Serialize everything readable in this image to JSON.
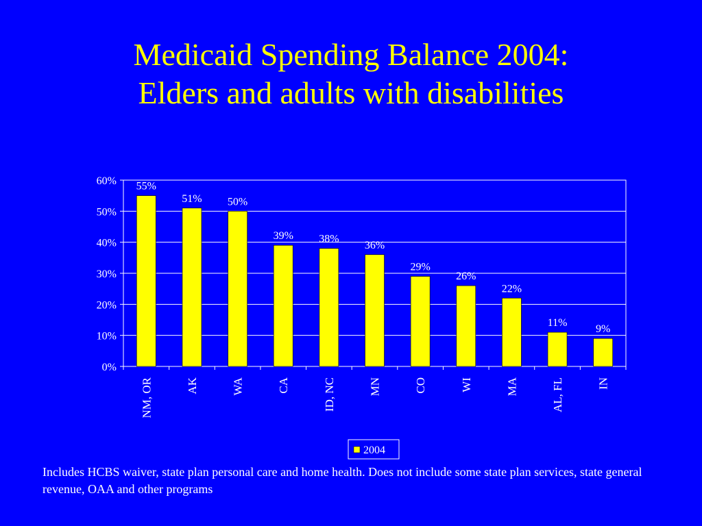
{
  "slide": {
    "title_line1": "Medicaid Spending Balance 2004:",
    "title_line2": "Elders and adults with disabilities",
    "footnote": "Includes HCBS waiver, state plan personal care and home health. Does not include some state plan services, state general revenue, OAA and other programs"
  },
  "colors": {
    "background": "#0000FF",
    "title": "#FFFF00",
    "bar": "#FFFF00",
    "text": "#FFFFFF",
    "grid": "#FFFFFF"
  },
  "chart_data": {
    "type": "bar",
    "categories": [
      "NM, OR",
      "AK",
      "WA",
      "CA",
      "ID, NC",
      "MN",
      "CO",
      "WI",
      "MA",
      "AL, FL",
      "IN"
    ],
    "series": [
      {
        "name": "2004",
        "values": [
          55,
          51,
          50,
          39,
          38,
          36,
          29,
          26,
          22,
          11,
          9
        ]
      }
    ],
    "value_suffix": "%",
    "ylim": [
      0,
      60
    ],
    "yticks": [
      0,
      10,
      20,
      30,
      40,
      50,
      60
    ],
    "ytick_labels": [
      "0%",
      "10%",
      "20%",
      "30%",
      "40%",
      "50%",
      "60%"
    ],
    "data_labels": [
      "55%",
      "51%",
      "50%",
      "39%",
      "38%",
      "36%",
      "29%",
      "26%",
      "22%",
      "11%",
      "9%"
    ],
    "grid": true,
    "legend": "bottom"
  }
}
